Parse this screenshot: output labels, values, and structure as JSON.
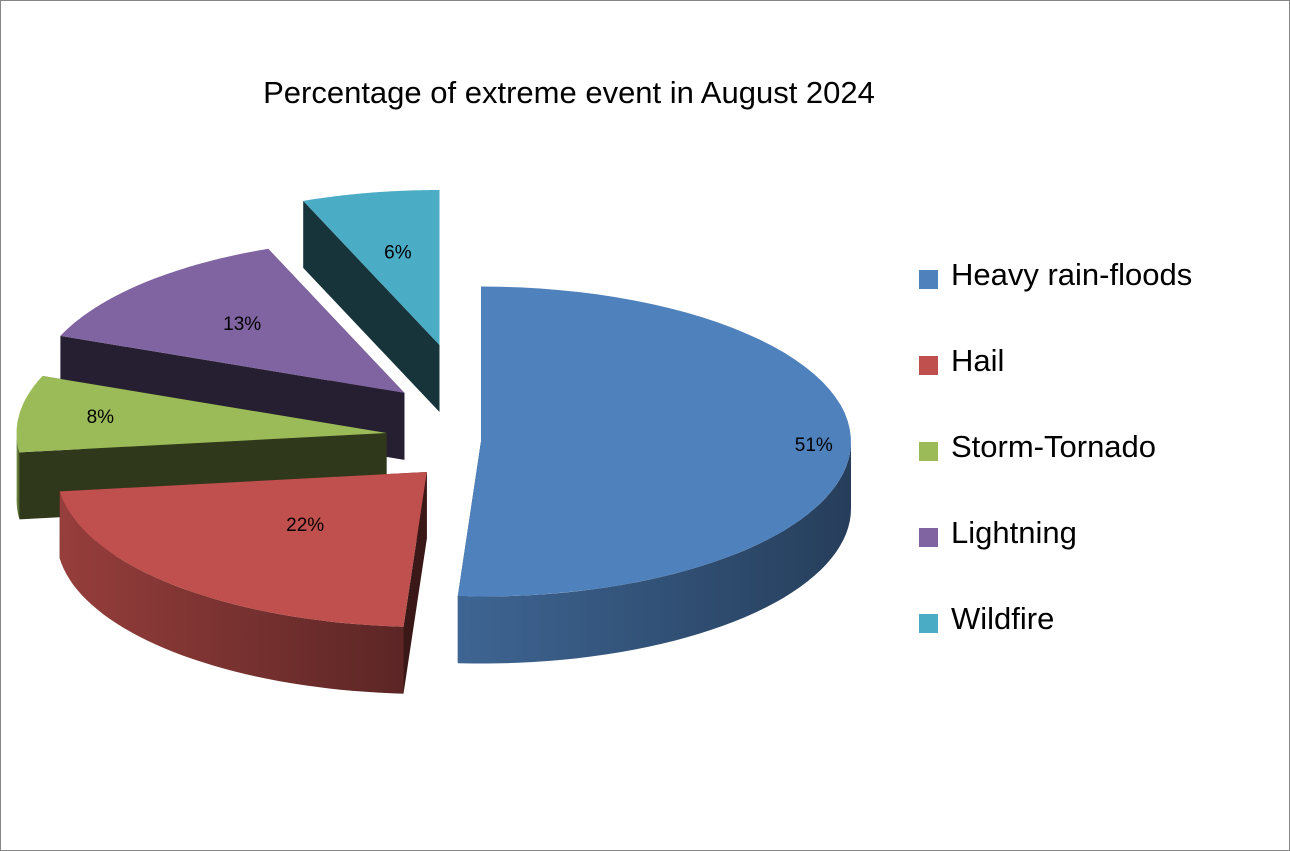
{
  "chart_data": {
    "type": "pie",
    "title": "Percentage of extreme event in August 2024",
    "labels": [
      "Heavy rain-floods",
      "Hail",
      "Storm-Tornado",
      "Lightning",
      "Wildfire"
    ],
    "values": [
      51,
      22,
      8,
      13,
      6
    ],
    "data_labels": [
      "51%",
      "22%",
      "8%",
      "13%",
      "6%"
    ],
    "colors": [
      "#4f81bd",
      "#c0504d",
      "#9bbb59",
      "#8064a2",
      "#4bacc6"
    ],
    "legend": "right",
    "style": "3d-exploded"
  }
}
